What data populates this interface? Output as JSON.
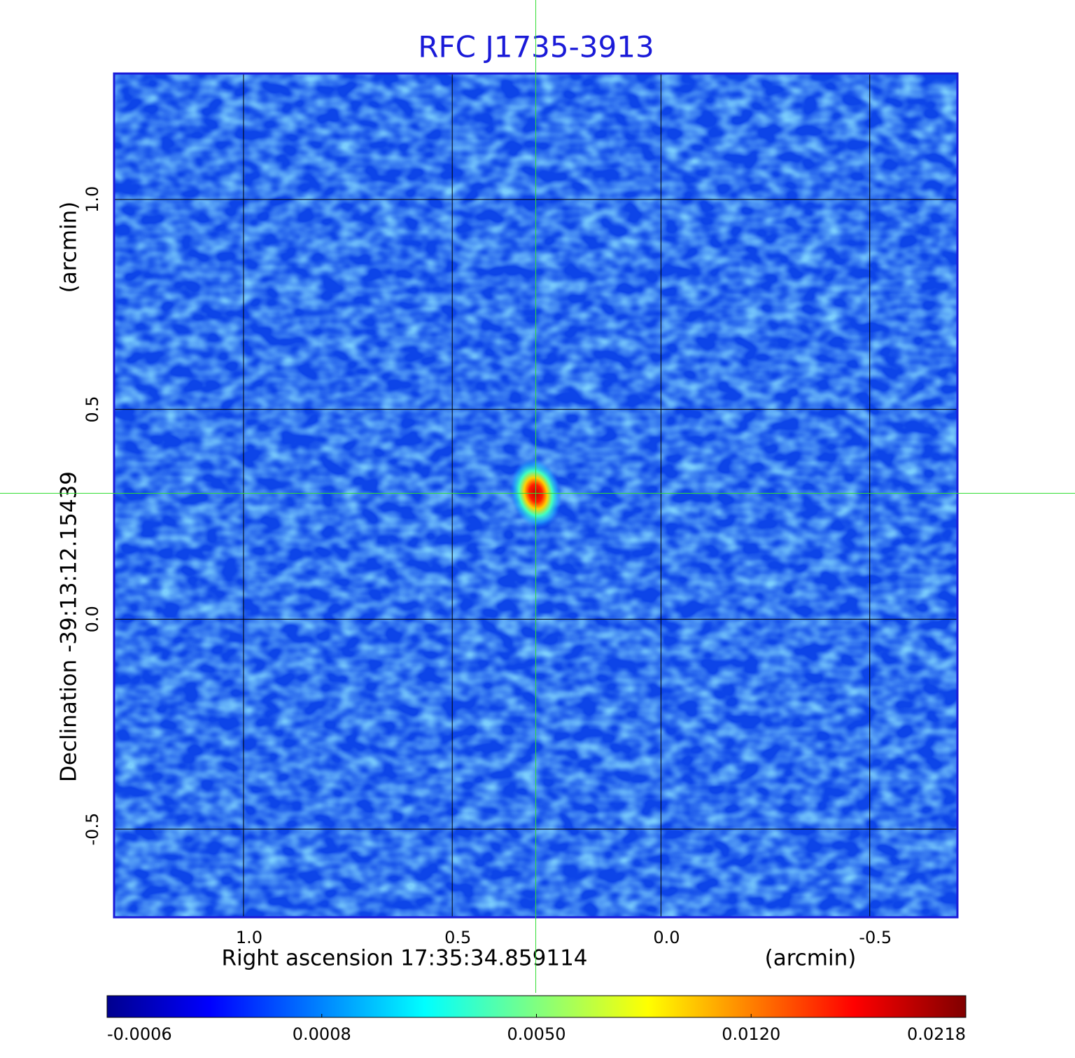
{
  "chart_data": {
    "type": "image",
    "title": "RFC J1735-3913",
    "x_label": "Right ascension  17:35:34.859114",
    "x_unit": "(arcmin)",
    "y_label": "Declination  -39:13:12.15439",
    "y_unit": "(arcmin)",
    "xlim": [
      1.31,
      -0.71
    ],
    "ylim": [
      -0.71,
      1.3
    ],
    "xticks": [
      {
        "value": 1,
        "label": "1.0"
      },
      {
        "value": 0.5,
        "label": "0.5"
      },
      {
        "value": 0,
        "label": "0.0"
      },
      {
        "value": -0.5,
        "label": "-0.5"
      }
    ],
    "yticks": [
      {
        "value": 1,
        "label": "1.0"
      },
      {
        "value": 0.5,
        "label": "0.5"
      },
      {
        "value": 0,
        "label": "0.0"
      },
      {
        "value": -0.5,
        "label": "-0.5"
      }
    ],
    "grid": true,
    "source": {
      "x": 0.3,
      "y": 0.3
    },
    "colormap": "jet",
    "colorbar_ticks": [
      -0.0006,
      0.0008,
      {
        "value": 0.005,
        "label": "0.0050"
      },
      {
        "value": 0.012,
        "label": "0.0120"
      },
      0.0218
    ]
  }
}
